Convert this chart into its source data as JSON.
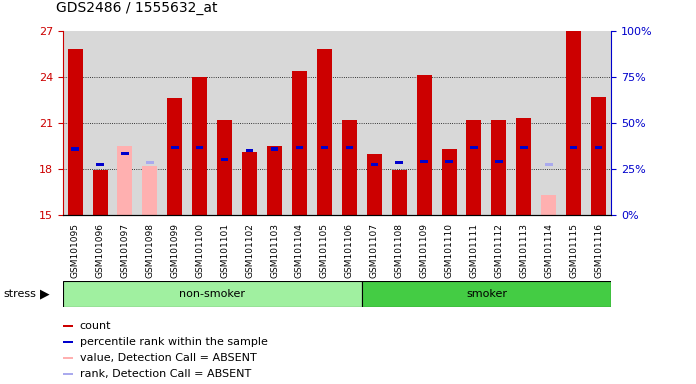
{
  "title": "GDS2486 / 1555632_at",
  "samples": [
    "GSM101095",
    "GSM101096",
    "GSM101097",
    "GSM101098",
    "GSM101099",
    "GSM101100",
    "GSM101101",
    "GSM101102",
    "GSM101103",
    "GSM101104",
    "GSM101105",
    "GSM101106",
    "GSM101107",
    "GSM101108",
    "GSM101109",
    "GSM101110",
    "GSM101111",
    "GSM101112",
    "GSM101113",
    "GSM101114",
    "GSM101115",
    "GSM101116"
  ],
  "red_values": [
    25.8,
    17.9,
    null,
    null,
    22.6,
    24.0,
    21.2,
    19.1,
    19.5,
    24.4,
    25.8,
    21.2,
    19.0,
    17.9,
    24.1,
    19.3,
    21.2,
    21.2,
    21.3,
    null,
    27.0,
    22.7
  ],
  "pink_values": [
    null,
    null,
    19.5,
    18.2,
    null,
    null,
    null,
    null,
    null,
    null,
    null,
    null,
    null,
    null,
    null,
    null,
    null,
    null,
    null,
    16.3,
    null,
    null
  ],
  "blue_values": [
    19.3,
    18.3,
    19.0,
    null,
    19.4,
    19.4,
    18.6,
    19.2,
    19.3,
    19.4,
    19.4,
    19.4,
    18.3,
    18.4,
    18.5,
    18.5,
    19.4,
    18.5,
    19.4,
    null,
    19.4,
    19.4
  ],
  "lightblue_values": [
    null,
    null,
    null,
    18.4,
    null,
    null,
    null,
    null,
    null,
    null,
    null,
    null,
    null,
    null,
    null,
    null,
    null,
    null,
    null,
    18.3,
    null,
    null
  ],
  "group": [
    "non-smoker",
    "non-smoker",
    "non-smoker",
    "non-smoker",
    "non-smoker",
    "non-smoker",
    "non-smoker",
    "non-smoker",
    "non-smoker",
    "non-smoker",
    "non-smoker",
    "non-smoker",
    "smoker",
    "smoker",
    "smoker",
    "smoker",
    "smoker",
    "smoker",
    "smoker",
    "smoker",
    "smoker",
    "smoker"
  ],
  "ylim_left": [
    15,
    27
  ],
  "ylim_right": [
    0,
    100
  ],
  "yticks_left": [
    15,
    18,
    21,
    24,
    27
  ],
  "yticks_right": [
    0,
    25,
    50,
    75,
    100
  ],
  "bar_color_red": "#cc0000",
  "bar_color_pink": "#ffb0b0",
  "dot_color_blue": "#0000cc",
  "dot_color_lightblue": "#aaaaee",
  "bg_color": "#d8d8d8",
  "nonsmoker_color": "#a0f0a0",
  "smoker_color": "#44cc44",
  "title_fontsize": 10,
  "tick_fontsize": 6.5,
  "legend_fontsize": 8
}
